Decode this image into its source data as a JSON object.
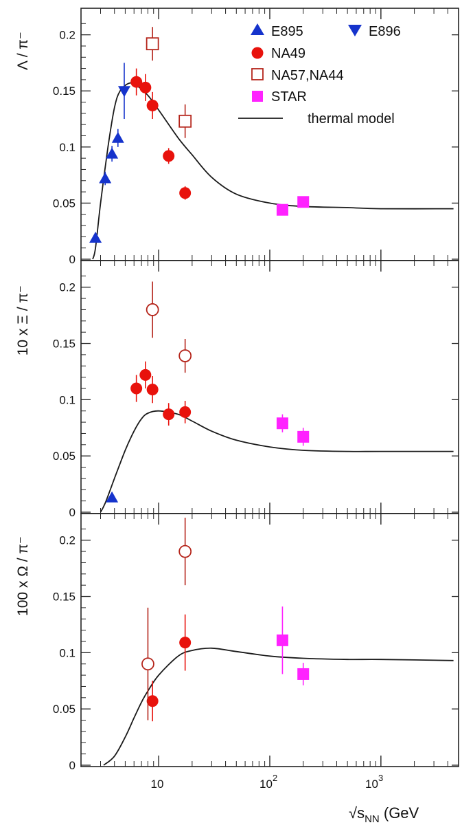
{
  "chart_data": {
    "type": "scatter",
    "x_scale": "log",
    "xlim": [
      2,
      5000
    ],
    "xlabel": "√s_NN (GeV",
    "xlabel_parts": {
      "root": "√s",
      "sub": "NN",
      "rest": " (GeV"
    },
    "x_ticks": [
      {
        "value": 10,
        "label": "10"
      },
      {
        "value": 100,
        "base": "10",
        "exp": "2"
      },
      {
        "value": 1000,
        "base": "10",
        "exp": "3"
      }
    ],
    "colors": {
      "blue": "#1533cc",
      "red": "#e8120c",
      "magenta": "#ff22ff",
      "hollow_stroke": "#b5251b",
      "line": "#1a1a1a"
    },
    "legend": {
      "placement": "top-right",
      "entries": [
        {
          "label": "E895",
          "marker": "triangle-up",
          "color": "#1533cc"
        },
        {
          "label": "E896",
          "marker": "triangle-down",
          "color": "#1533cc"
        },
        {
          "label": "NA49",
          "marker": "circle",
          "color": "#e8120c"
        },
        {
          "label": "NA57,NA44",
          "marker": "square-open",
          "color": "#b5251b"
        },
        {
          "label": "STAR",
          "marker": "square",
          "color": "#ff22ff"
        },
        {
          "label": "thermal model",
          "marker": "line",
          "color": "#1a1a1a"
        }
      ]
    },
    "panels": [
      {
        "ylabel": "Λ / π⁻",
        "ylim": [
          0,
          0.22
        ],
        "y_ticks": [
          "0",
          "0.05",
          "0.1",
          "0.15",
          "0.2"
        ],
        "y_tick_values": [
          0,
          0.05,
          0.1,
          0.15,
          0.2
        ],
        "series": [
          {
            "name": "E895",
            "marker": "triangle-up",
            "color": "#1533cc",
            "points": [
              {
                "x": 2.7,
                "y": 0.019,
                "err": 0.004
              },
              {
                "x": 3.3,
                "y": 0.072,
                "err": 0.006
              },
              {
                "x": 3.8,
                "y": 0.094,
                "err": 0.007
              },
              {
                "x": 4.3,
                "y": 0.108,
                "err": 0.008
              }
            ]
          },
          {
            "name": "E896",
            "marker": "triangle-down",
            "color": "#1533cc",
            "points": [
              {
                "x": 4.9,
                "y": 0.15,
                "err": 0.025
              }
            ]
          },
          {
            "name": "NA49",
            "marker": "circle",
            "color": "#e8120c",
            "points": [
              {
                "x": 6.3,
                "y": 0.158,
                "err": 0.012
              },
              {
                "x": 7.6,
                "y": 0.153,
                "err": 0.012
              },
              {
                "x": 8.8,
                "y": 0.137,
                "err": 0.012
              },
              {
                "x": 12.3,
                "y": 0.092,
                "err": 0.007
              },
              {
                "x": 17.3,
                "y": 0.059,
                "err": 0.006
              }
            ]
          },
          {
            "name": "NA57,NA44",
            "marker": "square-open",
            "color": "#b5251b",
            "points": [
              {
                "x": 8.8,
                "y": 0.192,
                "err": 0.015
              },
              {
                "x": 17.3,
                "y": 0.123,
                "err": 0.015
              }
            ]
          },
          {
            "name": "STAR",
            "marker": "square",
            "color": "#ff22ff",
            "points": [
              {
                "x": 130,
                "y": 0.044,
                "err": 0.004
              },
              {
                "x": 200,
                "y": 0.051,
                "err": 0.004
              }
            ]
          }
        ],
        "model": [
          [
            2.55,
            0
          ],
          [
            2.7,
            0.01
          ],
          [
            3.0,
            0.05
          ],
          [
            3.5,
            0.1
          ],
          [
            4.0,
            0.135
          ],
          [
            4.5,
            0.15
          ],
          [
            5.5,
            0.157
          ],
          [
            6.5,
            0.154
          ],
          [
            8,
            0.146
          ],
          [
            10,
            0.133
          ],
          [
            15,
            0.108
          ],
          [
            20,
            0.093
          ],
          [
            30,
            0.073
          ],
          [
            50,
            0.058
          ],
          [
            100,
            0.05
          ],
          [
            200,
            0.047
          ],
          [
            500,
            0.046
          ],
          [
            1000,
            0.045
          ],
          [
            4500,
            0.045
          ]
        ]
      },
      {
        "ylabel": "10 x Ξ / π⁻",
        "ylim": [
          0,
          0.22
        ],
        "y_ticks": [
          "0",
          "0.05",
          "0.1",
          "0.15",
          "0.2"
        ],
        "y_tick_values": [
          0,
          0.05,
          0.1,
          0.15,
          0.2
        ],
        "series": [
          {
            "name": "E895",
            "marker": "triangle-up",
            "color": "#1533cc",
            "points": [
              {
                "x": 3.8,
                "y": 0.013,
                "err": 0.003
              }
            ]
          },
          {
            "name": "NA49",
            "marker": "circle",
            "color": "#e8120c",
            "points": [
              {
                "x": 6.3,
                "y": 0.11,
                "err": 0.012
              },
              {
                "x": 7.6,
                "y": 0.122,
                "err": 0.012
              },
              {
                "x": 8.8,
                "y": 0.109,
                "err": 0.012
              },
              {
                "x": 12.3,
                "y": 0.087,
                "err": 0.01
              },
              {
                "x": 17.3,
                "y": 0.089,
                "err": 0.01
              }
            ]
          },
          {
            "name": "NA57,NA44",
            "marker": "circle-open",
            "color": "#b5251b",
            "points": [
              {
                "x": 8.8,
                "y": 0.18,
                "err": 0.025
              },
              {
                "x": 17.3,
                "y": 0.139,
                "err": 0.015
              }
            ]
          },
          {
            "name": "STAR",
            "marker": "square",
            "color": "#ff22ff",
            "points": [
              {
                "x": 130,
                "y": 0.079,
                "err": 0.008
              },
              {
                "x": 200,
                "y": 0.067,
                "err": 0.008
              }
            ]
          }
        ],
        "model": [
          [
            3.0,
            0
          ],
          [
            3.3,
            0.008
          ],
          [
            4,
            0.03
          ],
          [
            5,
            0.055
          ],
          [
            6,
            0.072
          ],
          [
            7,
            0.083
          ],
          [
            8,
            0.088
          ],
          [
            10,
            0.09
          ],
          [
            15,
            0.087
          ],
          [
            20,
            0.081
          ],
          [
            30,
            0.072
          ],
          [
            50,
            0.064
          ],
          [
            100,
            0.058
          ],
          [
            200,
            0.055
          ],
          [
            500,
            0.054
          ],
          [
            1000,
            0.054
          ],
          [
            4500,
            0.054
          ]
        ]
      },
      {
        "ylabel": "100 x Ω / π⁻",
        "ylim": [
          0,
          0.22
        ],
        "y_ticks": [
          "0",
          "0.05",
          "0.1",
          "0.15",
          "0.2"
        ],
        "y_tick_values": [
          0,
          0.05,
          0.1,
          0.15,
          0.2
        ],
        "series": [
          {
            "name": "NA49",
            "marker": "circle",
            "color": "#e8120c",
            "points": [
              {
                "x": 8.8,
                "y": 0.057,
                "err": 0.018
              },
              {
                "x": 17.3,
                "y": 0.109,
                "err": 0.025
              }
            ]
          },
          {
            "name": "NA57,NA44",
            "marker": "circle-open",
            "color": "#b5251b",
            "points": [
              {
                "x": 8.0,
                "y": 0.09,
                "err": 0.05
              },
              {
                "x": 17.3,
                "y": 0.19,
                "err": 0.03
              }
            ]
          },
          {
            "name": "STAR",
            "marker": "square",
            "color": "#ff22ff",
            "points": [
              {
                "x": 130,
                "y": 0.111,
                "err": 0.03
              },
              {
                "x": 200,
                "y": 0.081,
                "err": 0.01
              }
            ]
          }
        ],
        "model": [
          [
            3.2,
            0
          ],
          [
            4,
            0.008
          ],
          [
            5,
            0.025
          ],
          [
            6,
            0.042
          ],
          [
            7,
            0.056
          ],
          [
            8,
            0.066
          ],
          [
            10,
            0.08
          ],
          [
            15,
            0.097
          ],
          [
            20,
            0.102
          ],
          [
            30,
            0.104
          ],
          [
            50,
            0.101
          ],
          [
            100,
            0.097
          ],
          [
            200,
            0.095
          ],
          [
            500,
            0.094
          ],
          [
            1000,
            0.094
          ],
          [
            4500,
            0.093
          ]
        ]
      }
    ]
  }
}
